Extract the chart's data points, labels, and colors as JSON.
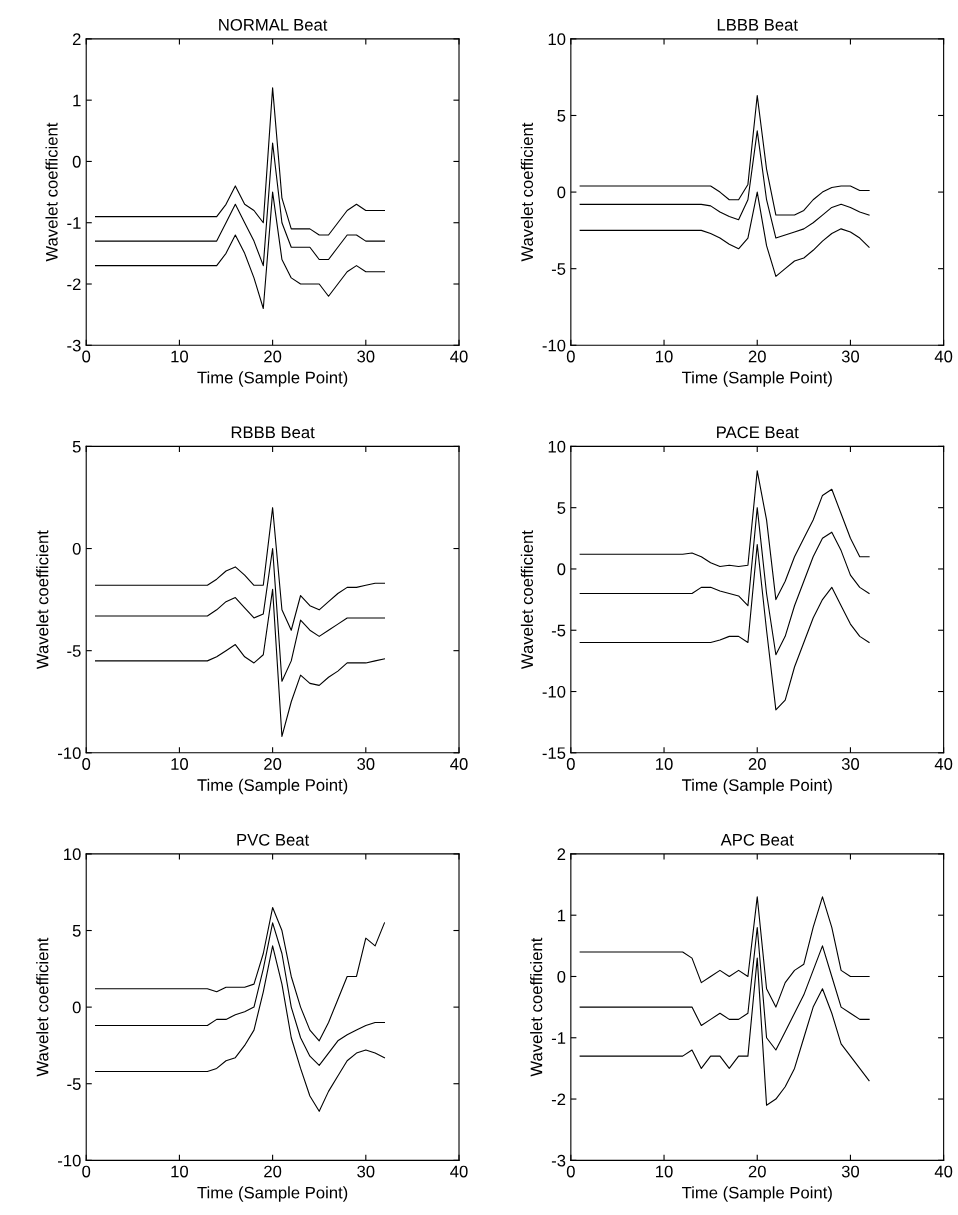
{
  "chart_data": [
    {
      "type": "line",
      "title": "NORMAL Beat",
      "xlabel": "Time (Sample Point)",
      "ylabel": "Wavelet coefficient",
      "xlim": [
        0,
        40
      ],
      "xticks": [
        0,
        10,
        20,
        30,
        40
      ],
      "ylim": [
        -3,
        2
      ],
      "yticks": [
        -3,
        -2,
        -1,
        0,
        1,
        2
      ],
      "x": [
        1,
        2,
        3,
        4,
        5,
        6,
        7,
        8,
        9,
        10,
        11,
        12,
        13,
        14,
        15,
        16,
        17,
        18,
        19,
        20,
        21,
        22,
        23,
        24,
        25,
        26,
        27,
        28,
        29,
        30,
        31,
        32
      ],
      "series": [
        {
          "color": "#000000",
          "values": [
            -0.9,
            -0.9,
            -0.9,
            -0.9,
            -0.9,
            -0.9,
            -0.9,
            -0.9,
            -0.9,
            -0.9,
            -0.9,
            -0.9,
            -0.9,
            -0.9,
            -0.7,
            -0.4,
            -0.7,
            -0.8,
            -1.0,
            1.2,
            -0.6,
            -1.1,
            -1.1,
            -1.1,
            -1.2,
            -1.2,
            -1.0,
            -0.8,
            -0.7,
            -0.8,
            -0.8,
            -0.8
          ]
        },
        {
          "color": "#000000",
          "values": [
            -1.3,
            -1.3,
            -1.3,
            -1.3,
            -1.3,
            -1.3,
            -1.3,
            -1.3,
            -1.3,
            -1.3,
            -1.3,
            -1.3,
            -1.3,
            -1.3,
            -1.0,
            -0.7,
            -1.0,
            -1.3,
            -1.7,
            0.3,
            -1.0,
            -1.4,
            -1.4,
            -1.4,
            -1.6,
            -1.6,
            -1.4,
            -1.2,
            -1.2,
            -1.3,
            -1.3,
            -1.3
          ]
        },
        {
          "color": "#000000",
          "values": [
            -1.7,
            -1.7,
            -1.7,
            -1.7,
            -1.7,
            -1.7,
            -1.7,
            -1.7,
            -1.7,
            -1.7,
            -1.7,
            -1.7,
            -1.7,
            -1.7,
            -1.5,
            -1.2,
            -1.5,
            -1.9,
            -2.4,
            -0.5,
            -1.6,
            -1.9,
            -2.0,
            -2.0,
            -2.0,
            -2.2,
            -2.0,
            -1.8,
            -1.7,
            -1.8,
            -1.8,
            -1.8
          ]
        }
      ]
    },
    {
      "type": "line",
      "title": "LBBB Beat",
      "xlabel": "Time (Sample Point)",
      "ylabel": "Wavelet coefficient",
      "xlim": [
        0,
        40
      ],
      "xticks": [
        0,
        10,
        20,
        30,
        40
      ],
      "ylim": [
        -10,
        10
      ],
      "yticks": [
        -10,
        -5,
        0,
        5,
        10
      ],
      "x": [
        1,
        2,
        3,
        4,
        5,
        6,
        7,
        8,
        9,
        10,
        11,
        12,
        13,
        14,
        15,
        16,
        17,
        18,
        19,
        20,
        21,
        22,
        23,
        24,
        25,
        26,
        27,
        28,
        29,
        30,
        31,
        32
      ],
      "series": [
        {
          "color": "#000000",
          "values": [
            0.4,
            0.4,
            0.4,
            0.4,
            0.4,
            0.4,
            0.4,
            0.4,
            0.4,
            0.4,
            0.4,
            0.4,
            0.4,
            0.4,
            0.4,
            0,
            -0.5,
            -0.5,
            0.5,
            6.3,
            1.5,
            -1.5,
            -1.5,
            -1.5,
            -1.2,
            -0.5,
            0,
            0.3,
            0.4,
            0.4,
            0.1,
            0.1
          ]
        },
        {
          "color": "#000000",
          "values": [
            -0.8,
            -0.8,
            -0.8,
            -0.8,
            -0.8,
            -0.8,
            -0.8,
            -0.8,
            -0.8,
            -0.8,
            -0.8,
            -0.8,
            -0.8,
            -0.8,
            -0.9,
            -1.3,
            -1.6,
            -1.8,
            -0.5,
            4,
            -0.5,
            -3,
            -2.8,
            -2.6,
            -2.4,
            -2,
            -1.5,
            -1,
            -0.8,
            -1.0,
            -1.3,
            -1.5
          ]
        },
        {
          "color": "#000000",
          "values": [
            -2.5,
            -2.5,
            -2.5,
            -2.5,
            -2.5,
            -2.5,
            -2.5,
            -2.5,
            -2.5,
            -2.5,
            -2.5,
            -2.5,
            -2.5,
            -2.5,
            -2.7,
            -3.0,
            -3.4,
            -3.7,
            -3.0,
            0,
            -3.5,
            -5.5,
            -5,
            -4.5,
            -4.3,
            -3.8,
            -3.2,
            -2.7,
            -2.4,
            -2.6,
            -3.0,
            -3.6
          ]
        }
      ]
    },
    {
      "type": "line",
      "title": "RBBB Beat",
      "xlabel": "Time (Sample Point)",
      "ylabel": "Wavelet coefficient",
      "xlim": [
        0,
        40
      ],
      "xticks": [
        0,
        10,
        20,
        30,
        40
      ],
      "ylim": [
        -10,
        5
      ],
      "yticks": [
        -10,
        -5,
        0,
        5
      ],
      "x": [
        1,
        2,
        3,
        4,
        5,
        6,
        7,
        8,
        9,
        10,
        11,
        12,
        13,
        14,
        15,
        16,
        17,
        18,
        19,
        20,
        21,
        22,
        23,
        24,
        25,
        26,
        27,
        28,
        29,
        30,
        31,
        32
      ],
      "series": [
        {
          "color": "#000000",
          "values": [
            -1.8,
            -1.8,
            -1.8,
            -1.8,
            -1.8,
            -1.8,
            -1.8,
            -1.8,
            -1.8,
            -1.8,
            -1.8,
            -1.8,
            -1.8,
            -1.5,
            -1.1,
            -0.9,
            -1.3,
            -1.8,
            -1.8,
            2.0,
            -3,
            -4,
            -2.3,
            -2.8,
            -3.0,
            -2.6,
            -2.2,
            -1.9,
            -1.9,
            -1.8,
            -1.7,
            -1.7
          ]
        },
        {
          "color": "#000000",
          "values": [
            -3.3,
            -3.3,
            -3.3,
            -3.3,
            -3.3,
            -3.3,
            -3.3,
            -3.3,
            -3.3,
            -3.3,
            -3.3,
            -3.3,
            -3.3,
            -3.0,
            -2.6,
            -2.4,
            -2.9,
            -3.4,
            -3.2,
            0,
            -6.5,
            -5.5,
            -3.5,
            -4.0,
            -4.3,
            -4.0,
            -3.7,
            -3.4,
            -3.4,
            -3.4,
            -3.4,
            -3.4
          ]
        },
        {
          "color": "#000000",
          "values": [
            -5.5,
            -5.5,
            -5.5,
            -5.5,
            -5.5,
            -5.5,
            -5.5,
            -5.5,
            -5.5,
            -5.5,
            -5.5,
            -5.5,
            -5.5,
            -5.3,
            -5.0,
            -4.7,
            -5.3,
            -5.6,
            -5.2,
            -2,
            -9.2,
            -7.5,
            -6.2,
            -6.6,
            -6.7,
            -6.3,
            -6.0,
            -5.6,
            -5.6,
            -5.6,
            -5.5,
            -5.4
          ]
        }
      ]
    },
    {
      "type": "line",
      "title": "PACE Beat",
      "xlabel": "Time (Sample Point)",
      "ylabel": "Wavelet coefficient",
      "xlim": [
        0,
        40
      ],
      "xticks": [
        0,
        10,
        20,
        30,
        40
      ],
      "ylim": [
        -15,
        10
      ],
      "yticks": [
        -15,
        -10,
        -5,
        0,
        5,
        10
      ],
      "x": [
        1,
        2,
        3,
        4,
        5,
        6,
        7,
        8,
        9,
        10,
        11,
        12,
        13,
        14,
        15,
        16,
        17,
        18,
        19,
        20,
        21,
        22,
        23,
        24,
        25,
        26,
        27,
        28,
        29,
        30,
        31,
        32
      ],
      "series": [
        {
          "color": "#000000",
          "values": [
            1.2,
            1.2,
            1.2,
            1.2,
            1.2,
            1.2,
            1.2,
            1.2,
            1.2,
            1.2,
            1.2,
            1.2,
            1.3,
            1.0,
            0.5,
            0.2,
            0.3,
            0.2,
            0.3,
            8.0,
            4,
            -2.5,
            -1,
            1,
            2.5,
            4,
            6,
            6.5,
            4.5,
            2.5,
            1.0,
            1.0
          ]
        },
        {
          "color": "#000000",
          "values": [
            -2,
            -2,
            -2,
            -2,
            -2,
            -2,
            -2,
            -2,
            -2,
            -2,
            -2,
            -2,
            -2,
            -1.5,
            -1.5,
            -1.8,
            -2,
            -2.2,
            -3,
            5,
            -2,
            -7,
            -5.5,
            -3,
            -1,
            1,
            2.5,
            3,
            1.5,
            -0.5,
            -1.5,
            -2
          ]
        },
        {
          "color": "#000000",
          "values": [
            -6,
            -6,
            -6,
            -6,
            -6,
            -6,
            -6,
            -6,
            -6,
            -6,
            -6,
            -6,
            -6,
            -6,
            -6,
            -5.8,
            -5.5,
            -5.5,
            -6,
            2,
            -5,
            -11.5,
            -10.7,
            -8,
            -6,
            -4,
            -2.5,
            -1.5,
            -3,
            -4.5,
            -5.5,
            -6
          ]
        }
      ]
    },
    {
      "type": "line",
      "title": "PVC Beat",
      "xlabel": "Time (Sample Point)",
      "ylabel": "Wavelet coefficient",
      "xlim": [
        0,
        40
      ],
      "xticks": [
        0,
        10,
        20,
        30,
        40
      ],
      "ylim": [
        -10,
        10
      ],
      "yticks": [
        -10,
        -5,
        0,
        5,
        10
      ],
      "x": [
        1,
        2,
        3,
        4,
        5,
        6,
        7,
        8,
        9,
        10,
        11,
        12,
        13,
        14,
        15,
        16,
        17,
        18,
        19,
        20,
        21,
        22,
        23,
        24,
        25,
        26,
        27,
        28,
        29,
        30,
        31,
        32
      ],
      "series": [
        {
          "color": "#000000",
          "values": [
            1.2,
            1.2,
            1.2,
            1.2,
            1.2,
            1.2,
            1.2,
            1.2,
            1.2,
            1.2,
            1.2,
            1.2,
            1.2,
            1.0,
            1.3,
            1.3,
            1.3,
            1.5,
            3.5,
            6.5,
            5,
            2,
            0,
            -1.5,
            -2.2,
            -1,
            0.5,
            2.0,
            2.0,
            4.5,
            4.0,
            5.5
          ]
        },
        {
          "color": "#000000",
          "values": [
            -1.2,
            -1.2,
            -1.2,
            -1.2,
            -1.2,
            -1.2,
            -1.2,
            -1.2,
            -1.2,
            -1.2,
            -1.2,
            -1.2,
            -1.2,
            -0.8,
            -0.8,
            -0.5,
            -0.3,
            0,
            2.5,
            5.5,
            3.5,
            0,
            -2.0,
            -3.2,
            -3.8,
            -3.0,
            -2.2,
            -1.8,
            -1.5,
            -1.2,
            -1.0,
            -1.0
          ]
        },
        {
          "color": "#000000",
          "values": [
            -4.2,
            -4.2,
            -4.2,
            -4.2,
            -4.2,
            -4.2,
            -4.2,
            -4.2,
            -4.2,
            -4.2,
            -4.2,
            -4.2,
            -4.2,
            -4.0,
            -3.5,
            -3.3,
            -2.5,
            -1.5,
            1.0,
            4.0,
            1.5,
            -2.0,
            -4.0,
            -5.8,
            -6.8,
            -5.5,
            -4.5,
            -3.5,
            -3.0,
            -2.8,
            -3.0,
            -3.3
          ]
        }
      ]
    },
    {
      "type": "line",
      "title": "APC Beat",
      "xlabel": "Time (Sample Point)",
      "ylabel": "Wavelet coefficient",
      "xlim": [
        0,
        40
      ],
      "xticks": [
        0,
        10,
        20,
        30,
        40
      ],
      "ylim": [
        -3,
        2
      ],
      "yticks": [
        -3,
        -2,
        -1,
        0,
        1,
        2
      ],
      "x": [
        1,
        2,
        3,
        4,
        5,
        6,
        7,
        8,
        9,
        10,
        11,
        12,
        13,
        14,
        15,
        16,
        17,
        18,
        19,
        20,
        21,
        22,
        23,
        24,
        25,
        26,
        27,
        28,
        29,
        30,
        31,
        32
      ],
      "series": [
        {
          "color": "#000000",
          "values": [
            0.4,
            0.4,
            0.4,
            0.4,
            0.4,
            0.4,
            0.4,
            0.4,
            0.4,
            0.4,
            0.4,
            0.4,
            0.3,
            -0.1,
            0,
            0.1,
            0,
            0.1,
            0,
            1.3,
            -0.2,
            -0.5,
            -0.1,
            0.1,
            0.2,
            0.8,
            1.3,
            0.8,
            0.1,
            0,
            0,
            0
          ]
        },
        {
          "color": "#000000",
          "values": [
            -0.5,
            -0.5,
            -0.5,
            -0.5,
            -0.5,
            -0.5,
            -0.5,
            -0.5,
            -0.5,
            -0.5,
            -0.5,
            -0.5,
            -0.5,
            -0.8,
            -0.7,
            -0.6,
            -0.7,
            -0.7,
            -0.6,
            0.8,
            -1.0,
            -1.2,
            -0.9,
            -0.6,
            -0.3,
            0.1,
            0.5,
            0,
            -0.5,
            -0.6,
            -0.7,
            -0.7
          ]
        },
        {
          "color": "#000000",
          "values": [
            -1.3,
            -1.3,
            -1.3,
            -1.3,
            -1.3,
            -1.3,
            -1.3,
            -1.3,
            -1.3,
            -1.3,
            -1.3,
            -1.3,
            -1.2,
            -1.5,
            -1.3,
            -1.3,
            -1.5,
            -1.3,
            -1.3,
            0.3,
            -2.1,
            -2.0,
            -1.8,
            -1.5,
            -1.0,
            -0.5,
            -0.2,
            -0.6,
            -1.1,
            -1.3,
            -1.5,
            -1.7
          ]
        }
      ]
    }
  ]
}
